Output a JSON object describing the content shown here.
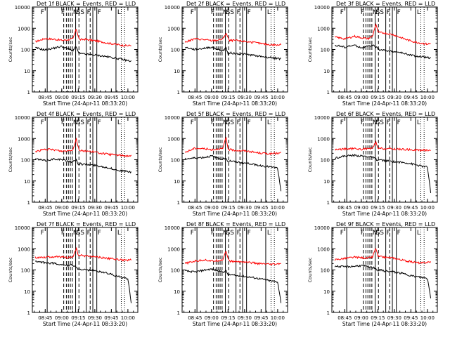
{
  "figure": {
    "panels": [
      {
        "id": "det1",
        "title": "Det 1f  BLACK = Events, RED = LLD",
        "xlabel": "Start Time (24-Apr-11 08:33:20)",
        "ylabel": "Counts/sec"
      },
      {
        "id": "det2",
        "title": "Det 2f  BLACK = Events, RED = LLD",
        "xlabel": "Start Time (24-Apr-11 08:33:20)",
        "ylabel": "Counts/sec"
      },
      {
        "id": "det3",
        "title": "Det 3f  BLACK = Events, RED = LLD",
        "xlabel": "Start Time (24-Apr-11 08:33:20)",
        "ylabel": "Counts/sec"
      },
      {
        "id": "det4",
        "title": "Det 4f  BLACK = Events, RED = LLD",
        "xlabel": "Start Time (24-Apr-11 08:33:20)",
        "ylabel": "Counts/sec"
      },
      {
        "id": "det5",
        "title": "Det 5f  BLACK = Events, RED = LLD",
        "xlabel": "Start Time (24-Apr-11 08:33:20)",
        "ylabel": "Counts/sec"
      },
      {
        "id": "det6",
        "title": "Det 6f  BLACK = Events, RED = LLD",
        "xlabel": "Start Time (24-Apr-11 08:33:20)",
        "ylabel": "Counts/sec"
      },
      {
        "id": "det7",
        "title": "Det 7f  BLACK = Events, RED = LLD",
        "xlabel": "Start Time (24-Apr-11 08:33:20)",
        "ylabel": "Counts/sec"
      },
      {
        "id": "det8",
        "title": "Det 8f  BLACK = Events, RED = LLD",
        "xlabel": "Start Time (24-Apr-11 08:33:20)",
        "ylabel": "Counts/sec"
      },
      {
        "id": "det9",
        "title": "Det 9f  BLACK = Events, RED = LLD",
        "xlabel": "Start Time (24-Apr-11 08:33:20)",
        "ylabel": "Counts/sec"
      }
    ],
    "x_ticks": [
      "08:45",
      "09:00",
      "09:15",
      "09:30",
      "09:45",
      "10:00"
    ],
    "y_ticks": [
      "1",
      "10",
      "100",
      "1000",
      "10000"
    ],
    "band_letters": [
      "F",
      "F",
      "N",
      "S",
      "S",
      "F",
      "F",
      "L"
    ]
  },
  "chart_data": {
    "type": "line",
    "yscale": "log",
    "ylim": [
      1,
      10000
    ],
    "xlim": [
      "08:33:20",
      "10:09:00"
    ],
    "series_colors": {
      "Events": "#000000",
      "LLD": "#ff0000"
    },
    "x_hours": [
      8.6,
      8.75,
      8.9,
      9.0,
      9.1,
      9.17,
      9.22,
      9.25,
      9.27,
      9.35,
      9.5,
      9.6,
      9.7,
      9.8,
      9.9,
      10.0,
      10.05
    ],
    "panels": [
      {
        "id": "det1",
        "lld": [
          230,
          330,
          300,
          270,
          290,
          320,
          950,
          420,
          290,
          300,
          260,
          230,
          200,
          180,
          160,
          150,
          160
        ],
        "events": [
          120,
          95,
          120,
          140,
          105,
          90,
          140,
          70,
          65,
          60,
          55,
          50,
          45,
          40,
          35,
          30,
          28
        ]
      },
      {
        "id": "det2",
        "lld": [
          220,
          320,
          290,
          260,
          280,
          310,
          600,
          350,
          260,
          270,
          240,
          220,
          200,
          180,
          170,
          160,
          170
        ],
        "events": [
          125,
          100,
          115,
          130,
          100,
          85,
          120,
          60,
          70,
          65,
          60,
          55,
          50,
          45,
          42,
          38,
          35
        ]
      },
      {
        "id": "det3",
        "lld": [
          380,
          320,
          420,
          360,
          320,
          420,
          1600,
          700,
          620,
          600,
          480,
          360,
          280,
          230,
          200,
          180,
          190
        ],
        "events": [
          160,
          130,
          160,
          120,
          140,
          160,
          130,
          110,
          100,
          90,
          80,
          70,
          60,
          50,
          45,
          42,
          40
        ]
      },
      {
        "id": "det4",
        "lld": [
          240,
          310,
          290,
          250,
          270,
          300,
          1000,
          380,
          270,
          260,
          230,
          200,
          180,
          170,
          160,
          150,
          160
        ],
        "events": [
          110,
          90,
          110,
          100,
          85,
          80,
          100,
          60,
          65,
          60,
          55,
          48,
          42,
          35,
          30,
          28,
          25
        ]
      },
      {
        "id": "det5",
        "lld": [
          220,
          350,
          330,
          300,
          320,
          330,
          1100,
          320,
          300,
          280,
          260,
          240,
          210,
          200,
          190,
          200,
          210
        ],
        "events": [
          110,
          120,
          130,
          150,
          120,
          110,
          120,
          80,
          90,
          80,
          70,
          65,
          55,
          50,
          45,
          40,
          3
        ]
      },
      {
        "id": "det6",
        "lld": [
          300,
          320,
          330,
          310,
          330,
          340,
          700,
          320,
          340,
          330,
          320,
          310,
          300,
          290,
          280,
          280,
          290
        ],
        "events": [
          120,
          150,
          160,
          150,
          140,
          130,
          110,
          90,
          100,
          90,
          80,
          75,
          70,
          60,
          50,
          45,
          3
        ]
      },
      {
        "id": "det7",
        "lld": [
          380,
          400,
          420,
          400,
          380,
          420,
          1000,
          500,
          480,
          460,
          420,
          380,
          350,
          320,
          300,
          280,
          300
        ],
        "events": [
          250,
          220,
          200,
          180,
          160,
          170,
          140,
          100,
          110,
          100,
          90,
          80,
          70,
          55,
          45,
          40,
          3
        ]
      },
      {
        "id": "det8",
        "lld": [
          200,
          260,
          300,
          260,
          280,
          300,
          850,
          320,
          260,
          250,
          240,
          220,
          200,
          190,
          180,
          190,
          200
        ],
        "events": [
          90,
          80,
          100,
          110,
          90,
          80,
          90,
          60,
          60,
          55,
          50,
          45,
          40,
          35,
          30,
          28,
          3
        ]
      },
      {
        "id": "det9",
        "lld": [
          300,
          350,
          400,
          380,
          360,
          400,
          1100,
          450,
          420,
          400,
          360,
          300,
          260,
          230,
          210,
          230,
          240
        ],
        "events": [
          150,
          140,
          150,
          160,
          140,
          130,
          120,
          90,
          100,
          90,
          80,
          70,
          60,
          50,
          45,
          40,
          5
        ]
      }
    ]
  }
}
